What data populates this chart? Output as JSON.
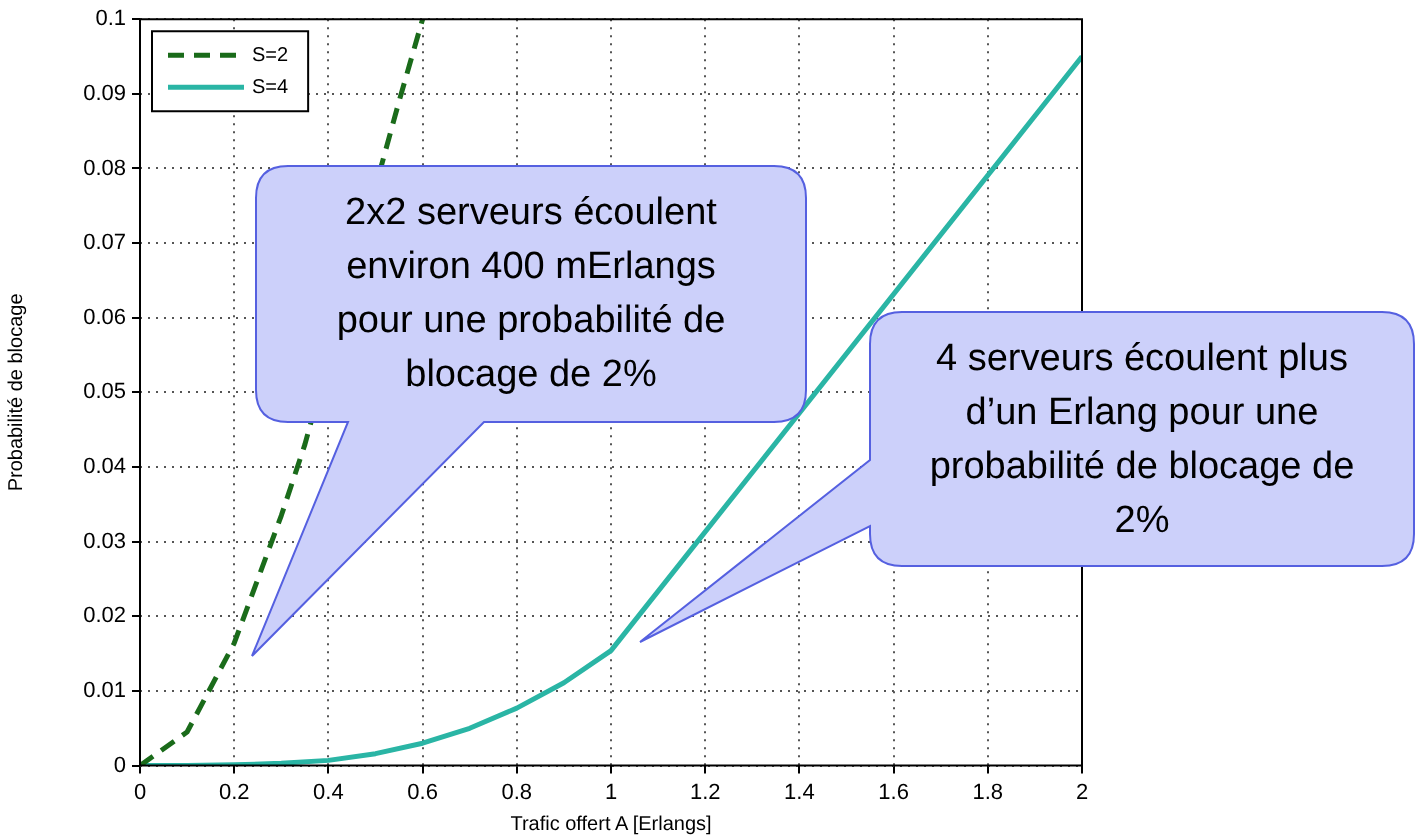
{
  "chart_data": {
    "type": "line",
    "xlabel": "Trafic offert A [Erlangs]",
    "ylabel": "Probabilité de blocage",
    "xlim": [
      0,
      2
    ],
    "xticks": [
      0,
      0.2,
      0.4,
      0.6,
      0.8,
      1,
      1.2,
      1.4,
      1.6,
      1.8,
      2
    ],
    "ylim": [
      0,
      0.1
    ],
    "yticks": [
      0,
      0.01,
      0.02,
      0.03,
      0.04,
      0.05,
      0.06,
      0.07,
      0.08,
      0.09,
      0.1
    ],
    "grid": true,
    "legend": "top left",
    "series": [
      {
        "name": "S=2",
        "color": "#1a6b1a",
        "line_style": "dashed",
        "x": [
          0,
          0.1,
          0.2,
          0.3,
          0.35,
          0.4,
          0.5,
          0.55,
          0.6
        ],
        "values": [
          0,
          0.0045,
          0.0164,
          0.0335,
          0.043,
          null,
          null,
          0.089,
          0.1
        ]
      },
      {
        "name": "S=4",
        "color": "#2ab5a5",
        "line_style": "solid",
        "x": [
          0,
          0.1,
          0.2,
          0.3,
          0.4,
          0.5,
          0.6,
          0.7,
          0.8,
          0.9,
          1,
          2
        ],
        "values": [
          0,
          0,
          0.0001,
          0.0003,
          0.0007,
          0.0016,
          0.003,
          0.005,
          0.0077,
          0.0111,
          0.0154,
          0.095
        ]
      }
    ],
    "annotations": [
      "2x2 serveurs écoulent environ 400 mErlangs pour une probabilité de blocage de 2%",
      "4 serveurs écoulent plus d’un Erlang pour une probabilité de blocage de 2%"
    ]
  }
}
